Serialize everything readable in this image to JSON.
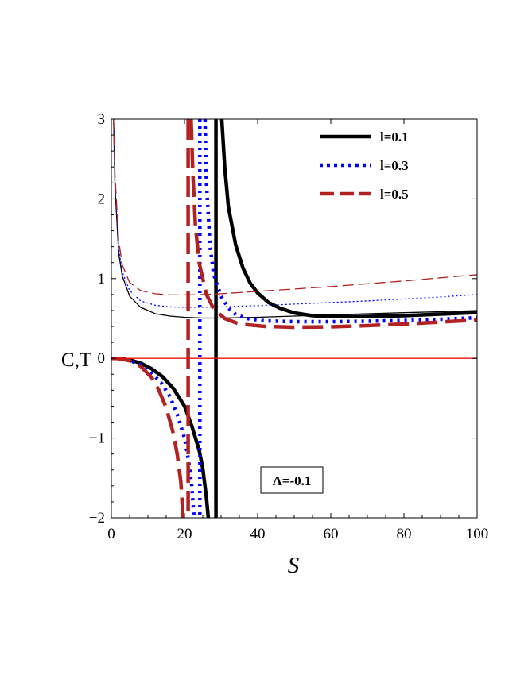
{
  "chart_data": {
    "type": "line",
    "title": "",
    "xlabel": "S",
    "ylabel": "C,T",
    "xlim": [
      0,
      100
    ],
    "ylim": [
      -2,
      3
    ],
    "x_ticks": [
      0,
      20,
      40,
      60,
      80,
      100
    ],
    "y_ticks": [
      -2,
      -1,
      0,
      1,
      2,
      3
    ],
    "x_tick_labels": [
      "0",
      "20",
      "40",
      "60",
      "80",
      "100"
    ],
    "y_tick_labels": [
      "−2",
      "−1",
      "0",
      "1",
      "2",
      "3"
    ],
    "grid": false,
    "legend_position": "top-right",
    "annotation": "Λ=-0.1",
    "zero_line_color": "#ee1111",
    "series": [
      {
        "name": "l=0.1",
        "color": "#000000",
        "style": "solid",
        "divergence_S": 28.6,
        "T": [
          [
            0.6,
            3.0
          ],
          [
            1,
            2.15
          ],
          [
            2,
            1.32
          ],
          [
            3,
            1.03
          ],
          [
            5,
            0.78
          ],
          [
            8,
            0.64
          ],
          [
            12,
            0.56
          ],
          [
            16,
            0.53
          ],
          [
            20,
            0.515
          ],
          [
            25,
            0.505
          ],
          [
            30,
            0.505
          ],
          [
            40,
            0.515
          ],
          [
            50,
            0.53
          ],
          [
            60,
            0.545
          ],
          [
            70,
            0.56
          ],
          [
            80,
            0.573
          ],
          [
            90,
            0.585
          ],
          [
            100,
            0.6
          ]
        ],
        "C_lower": [
          [
            0,
            0.0
          ],
          [
            2,
            -0.001
          ],
          [
            5,
            -0.02
          ],
          [
            8,
            -0.06
          ],
          [
            11,
            -0.13
          ],
          [
            14,
            -0.23
          ],
          [
            17,
            -0.38
          ],
          [
            20,
            -0.6
          ],
          [
            22,
            -0.85
          ],
          [
            24,
            -1.15
          ],
          [
            25,
            -1.38
          ],
          [
            26,
            -1.75
          ],
          [
            26.5,
            -2.0
          ]
        ],
        "C_upper": [
          [
            30.2,
            3.0
          ],
          [
            31,
            2.4
          ],
          [
            32,
            1.9
          ],
          [
            34,
            1.42
          ],
          [
            36,
            1.13
          ],
          [
            38,
            0.94
          ],
          [
            40,
            0.82
          ],
          [
            43,
            0.7
          ],
          [
            46,
            0.63
          ],
          [
            50,
            0.57
          ],
          [
            55,
            0.535
          ],
          [
            60,
            0.525
          ],
          [
            70,
            0.525
          ],
          [
            80,
            0.535
          ],
          [
            90,
            0.555
          ],
          [
            100,
            0.575
          ]
        ]
      },
      {
        "name": "l=0.3",
        "color": "#0000ff",
        "style": "dotted",
        "divergence_S": 24.2,
        "T": [
          [
            0.6,
            3.0
          ],
          [
            1,
            2.2
          ],
          [
            2,
            1.38
          ],
          [
            3,
            1.08
          ],
          [
            5,
            0.85
          ],
          [
            8,
            0.72
          ],
          [
            12,
            0.665
          ],
          [
            16,
            0.645
          ],
          [
            20,
            0.64
          ],
          [
            25,
            0.64
          ],
          [
            30,
            0.645
          ],
          [
            40,
            0.66
          ],
          [
            50,
            0.68
          ],
          [
            60,
            0.7
          ],
          [
            70,
            0.72
          ],
          [
            80,
            0.745
          ],
          [
            90,
            0.77
          ],
          [
            100,
            0.8
          ]
        ],
        "C_lower": [
          [
            0,
            0.0
          ],
          [
            2,
            -0.001
          ],
          [
            5,
            -0.025
          ],
          [
            8,
            -0.08
          ],
          [
            11,
            -0.18
          ],
          [
            14,
            -0.33
          ],
          [
            16,
            -0.48
          ],
          [
            18,
            -0.7
          ],
          [
            20,
            -1.0
          ],
          [
            21,
            -1.25
          ],
          [
            22,
            -1.6
          ],
          [
            22.6,
            -2.0
          ]
        ],
        "C_upper": [
          [
            25.6,
            3.0
          ],
          [
            26,
            2.2
          ],
          [
            27,
            1.4
          ],
          [
            28,
            1.05
          ],
          [
            30,
            0.78
          ],
          [
            32,
            0.63
          ],
          [
            34,
            0.55
          ],
          [
            37,
            0.5
          ],
          [
            42,
            0.47
          ],
          [
            50,
            0.46
          ],
          [
            60,
            0.46
          ],
          [
            70,
            0.465
          ],
          [
            80,
            0.475
          ],
          [
            90,
            0.49
          ],
          [
            100,
            0.51
          ]
        ]
      },
      {
        "name": "l=0.5",
        "color": "#b22222",
        "style": "dashed",
        "divergence_S": 21.0,
        "T": [
          [
            0.6,
            3.0
          ],
          [
            1,
            2.3
          ],
          [
            2,
            1.48
          ],
          [
            3,
            1.17
          ],
          [
            5,
            0.95
          ],
          [
            8,
            0.85
          ],
          [
            12,
            0.81
          ],
          [
            16,
            0.795
          ],
          [
            20,
            0.795
          ],
          [
            25,
            0.8
          ],
          [
            30,
            0.81
          ],
          [
            40,
            0.84
          ],
          [
            50,
            0.87
          ],
          [
            60,
            0.9
          ],
          [
            70,
            0.935
          ],
          [
            80,
            0.97
          ],
          [
            90,
            1.01
          ],
          [
            100,
            1.05
          ]
        ],
        "C_lower": [
          [
            0,
            0.0
          ],
          [
            2,
            -0.002
          ],
          [
            5,
            -0.03
          ],
          [
            8,
            -0.1
          ],
          [
            11,
            -0.24
          ],
          [
            13,
            -0.4
          ],
          [
            15,
            -0.62
          ],
          [
            17,
            -0.95
          ],
          [
            18,
            -1.2
          ],
          [
            19,
            -1.55
          ],
          [
            19.6,
            -2.0
          ]
        ],
        "C_upper": [
          [
            21.8,
            3.0
          ],
          [
            22.3,
            2.3
          ],
          [
            23,
            1.65
          ],
          [
            24,
            1.2
          ],
          [
            26,
            0.8
          ],
          [
            28,
            0.62
          ],
          [
            31,
            0.5
          ],
          [
            35,
            0.43
          ],
          [
            42,
            0.4
          ],
          [
            50,
            0.39
          ],
          [
            60,
            0.395
          ],
          [
            70,
            0.41
          ],
          [
            80,
            0.43
          ],
          [
            90,
            0.455
          ],
          [
            100,
            0.48
          ]
        ]
      }
    ]
  }
}
